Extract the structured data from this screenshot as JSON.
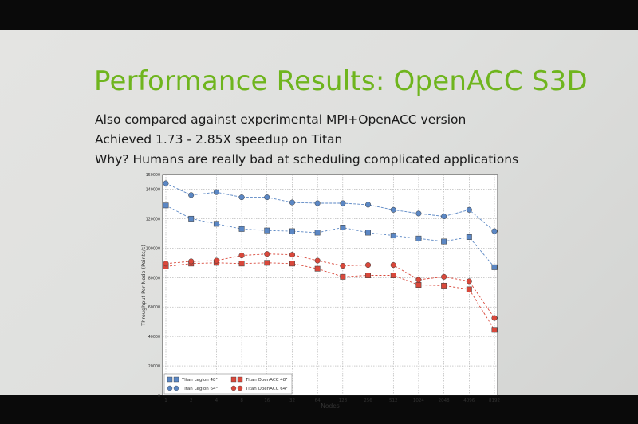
{
  "slide": {
    "title": "Performance Results: OpenACC S3D",
    "bullets": [
      "Also compared against experimental MPI+OpenACC version",
      "Achieved 1.73 - 2.85X speedup on Titan",
      "Why? Humans are really bad at scheduling complicated applications"
    ]
  },
  "chart_data": {
    "type": "line",
    "title": "",
    "xlabel": "Nodes",
    "ylabel": "Throughput Per Node (Points/s)",
    "x": [
      "1",
      "2",
      "4",
      "8",
      "16",
      "32",
      "64",
      "128",
      "256",
      "512",
      "1024",
      "2048",
      "4096",
      "8192"
    ],
    "ylim": [
      0,
      150000
    ],
    "yticks": [
      "0",
      "20000",
      "40000",
      "60000",
      "80000",
      "100000",
      "120000",
      "140000",
      "150000"
    ],
    "grid": true,
    "legend_position": "bottom-left",
    "series": [
      {
        "name": "Titan Legion 48³",
        "color": "#5b87c4",
        "marker": "square",
        "values": [
          129000,
          120000,
          116500,
          113000,
          112000,
          111500,
          110500,
          114000,
          110500,
          108500,
          106500,
          104500,
          107500,
          87000
        ]
      },
      {
        "name": "Titan Legion 64³",
        "color": "#5b87c4",
        "marker": "circle",
        "values": [
          144000,
          136000,
          138000,
          134500,
          134500,
          131000,
          130500,
          130500,
          129500,
          126000,
          123500,
          121500,
          126000,
          111500
        ]
      },
      {
        "name": "Titan OpenACC 48³",
        "color": "#d9483b",
        "marker": "square",
        "values": [
          87500,
          89500,
          90000,
          89500,
          90000,
          89500,
          86000,
          80500,
          81500,
          81500,
          75000,
          74500,
          72000,
          44500
        ]
      },
      {
        "name": "Titan OpenACC 64³",
        "color": "#d9483b",
        "marker": "circle",
        "values": [
          89500,
          91000,
          91500,
          95000,
          96000,
          95500,
          91500,
          88000,
          88500,
          88500,
          78500,
          80500,
          77500,
          52500
        ]
      }
    ]
  }
}
